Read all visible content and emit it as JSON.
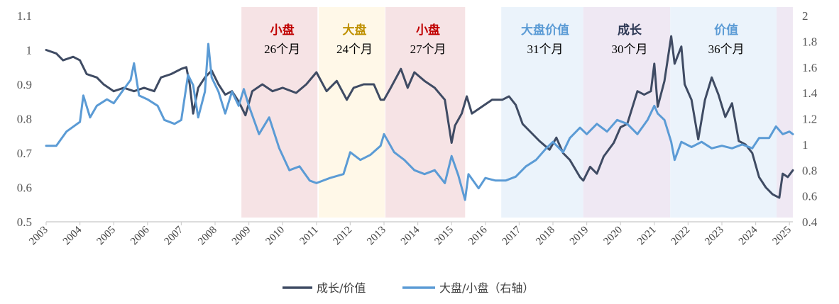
{
  "chart_data": {
    "type": "line",
    "title": "",
    "x_axis": {
      "range": [
        2003,
        2025.1
      ],
      "tick_labels": [
        "2003",
        "2004",
        "2005",
        "2006",
        "2007",
        "2008",
        "2009",
        "2010",
        "2011",
        "2012",
        "2013",
        "2014",
        "2015",
        "2016",
        "2017",
        "2018",
        "2019",
        "2020",
        "2021",
        "2022",
        "2023",
        "2024",
        "2025"
      ]
    },
    "y_left": {
      "range": [
        0.5,
        1.1
      ],
      "tick_labels": [
        "0.5",
        "0.6",
        "0.7",
        "0.8",
        "0.9",
        "1",
        "1.1"
      ]
    },
    "y_right": {
      "range": [
        0.4,
        2.0
      ],
      "tick_labels": [
        "0.4",
        "0.6",
        "0.8",
        "1",
        "1.2",
        "1.4",
        "1.6",
        "1.8",
        "2"
      ]
    },
    "grid": false,
    "legend_placement": "bottom",
    "regions": [
      {
        "start": 2008.78,
        "end": 2011.03,
        "label": "小盘",
        "duration": "26个月",
        "fill": "#f6e3e5",
        "label_color": "#c00000"
      },
      {
        "start": 2011.07,
        "end": 2013.02,
        "label": "大盘",
        "duration": "24个月",
        "fill": "#fff8e8",
        "label_color": "#bf9000"
      },
      {
        "start": 2013.04,
        "end": 2015.4,
        "label": "小盘",
        "duration": "27个月",
        "fill": "#f6e3e5",
        "label_color": "#c00000"
      },
      {
        "start": 2016.47,
        "end": 2018.9,
        "label": "大盘价值",
        "duration": "31个月",
        "fill": "#ebf3fb",
        "label_color": "#5b9bd5"
      },
      {
        "start": 2018.9,
        "end": 2021.47,
        "label": "成长",
        "duration": "30个月",
        "fill": "#efe8f3",
        "label_color": "#2f3a56"
      },
      {
        "start": 2021.47,
        "end": 2024.62,
        "label": "价值",
        "duration": "36个月",
        "fill": "#ebf3fb",
        "label_color": "#5b9bd5"
      },
      {
        "start": 2024.62,
        "end": 2025.1,
        "label": "",
        "duration": "",
        "fill": "#efe8f3",
        "label_color": "#2f3a56"
      }
    ],
    "series": [
      {
        "name": "成长/价值",
        "axis": "left",
        "color": "#3f4b63",
        "x": [
          2003.0,
          2003.3,
          2003.5,
          2003.8,
          2004.0,
          2004.2,
          2004.5,
          2004.7,
          2005.0,
          2005.3,
          2005.6,
          2005.9,
          2006.2,
          2006.4,
          2006.7,
          2007.0,
          2007.15,
          2007.25,
          2007.35,
          2007.5,
          2007.7,
          2007.9,
          2008.1,
          2008.3,
          2008.5,
          2008.7,
          2008.9,
          2009.1,
          2009.4,
          2009.7,
          2010.0,
          2010.4,
          2010.7,
          2011.0,
          2011.3,
          2011.6,
          2011.9,
          2012.1,
          2012.4,
          2012.7,
          2012.9,
          2013.0,
          2013.2,
          2013.5,
          2013.7,
          2013.9,
          2014.2,
          2014.5,
          2014.8,
          2015.0,
          2015.1,
          2015.3,
          2015.45,
          2015.6,
          2015.9,
          2016.2,
          2016.5,
          2016.7,
          2016.9,
          2017.1,
          2017.3,
          2017.6,
          2017.9,
          2018.1,
          2018.3,
          2018.5,
          2018.8,
          2018.9,
          2019.1,
          2019.3,
          2019.5,
          2019.8,
          2020.0,
          2020.2,
          2020.5,
          2020.7,
          2020.9,
          2021.0,
          2021.1,
          2021.3,
          2021.5,
          2021.6,
          2021.8,
          2021.9,
          2022.1,
          2022.3,
          2022.5,
          2022.7,
          2022.9,
          2023.1,
          2023.3,
          2023.5,
          2023.7,
          2023.9,
          2024.1,
          2024.3,
          2024.5,
          2024.7,
          2024.8,
          2024.95,
          2025.1
        ],
        "values": [
          1.0,
          0.99,
          0.97,
          0.98,
          0.97,
          0.93,
          0.92,
          0.9,
          0.88,
          0.89,
          0.88,
          0.89,
          0.88,
          0.92,
          0.93,
          0.945,
          0.95,
          0.9,
          0.815,
          0.89,
          0.92,
          0.94,
          0.9,
          0.87,
          0.88,
          0.85,
          0.81,
          0.88,
          0.9,
          0.88,
          0.89,
          0.875,
          0.9,
          0.935,
          0.88,
          0.91,
          0.855,
          0.89,
          0.9,
          0.9,
          0.855,
          0.855,
          0.89,
          0.945,
          0.89,
          0.935,
          0.91,
          0.89,
          0.855,
          0.73,
          0.78,
          0.815,
          0.865,
          0.815,
          0.835,
          0.855,
          0.855,
          0.865,
          0.84,
          0.785,
          0.765,
          0.735,
          0.71,
          0.745,
          0.7,
          0.68,
          0.63,
          0.62,
          0.66,
          0.64,
          0.69,
          0.73,
          0.775,
          0.785,
          0.88,
          0.87,
          0.88,
          0.96,
          0.835,
          0.91,
          1.04,
          0.96,
          1.01,
          0.9,
          0.855,
          0.74,
          0.855,
          0.92,
          0.87,
          0.805,
          0.845,
          0.735,
          0.725,
          0.7,
          0.63,
          0.6,
          0.58,
          0.57,
          0.64,
          0.63,
          0.65
        ]
      },
      {
        "name": "大盘/小盘（右轴）",
        "axis": "right",
        "color": "#5b9bd5",
        "x": [
          2003.0,
          2003.3,
          2003.6,
          2004.0,
          2004.1,
          2004.3,
          2004.5,
          2004.8,
          2005.0,
          2005.3,
          2005.5,
          2005.6,
          2005.75,
          2006.0,
          2006.3,
          2006.5,
          2006.8,
          2007.0,
          2007.2,
          2007.35,
          2007.5,
          2007.7,
          2007.8,
          2007.9,
          2008.1,
          2008.3,
          2008.5,
          2008.7,
          2008.85,
          2009.0,
          2009.3,
          2009.6,
          2009.9,
          2010.2,
          2010.5,
          2010.8,
          2011.0,
          2011.4,
          2011.8,
          2012.0,
          2012.3,
          2012.6,
          2012.9,
          2013.0,
          2013.3,
          2013.6,
          2013.9,
          2014.2,
          2014.5,
          2014.8,
          2015.0,
          2015.2,
          2015.4,
          2015.5,
          2015.8,
          2016.0,
          2016.3,
          2016.6,
          2016.9,
          2017.2,
          2017.5,
          2017.8,
          2018.0,
          2018.3,
          2018.5,
          2018.8,
          2019.0,
          2019.3,
          2019.6,
          2019.9,
          2020.2,
          2020.5,
          2020.8,
          2021.0,
          2021.1,
          2021.3,
          2021.5,
          2021.6,
          2021.8,
          2022.1,
          2022.4,
          2022.7,
          2023.0,
          2023.3,
          2023.6,
          2023.9,
          2024.1,
          2024.4,
          2024.6,
          2024.8,
          2025.0,
          2025.1
        ],
        "values": [
          0.99,
          0.99,
          1.1,
          1.175,
          1.38,
          1.21,
          1.3,
          1.35,
          1.32,
          1.43,
          1.5,
          1.63,
          1.38,
          1.35,
          1.3,
          1.19,
          1.16,
          1.19,
          1.54,
          1.46,
          1.21,
          1.41,
          1.78,
          1.52,
          1.41,
          1.24,
          1.41,
          1.3,
          1.43,
          1.3,
          1.08,
          1.21,
          0.97,
          0.8,
          0.83,
          0.72,
          0.7,
          0.74,
          0.77,
          0.94,
          0.88,
          0.92,
          0.99,
          1.08,
          0.94,
          0.88,
          0.8,
          0.77,
          0.8,
          0.7,
          0.91,
          0.76,
          0.57,
          0.77,
          0.66,
          0.74,
          0.72,
          0.72,
          0.75,
          0.83,
          0.88,
          0.97,
          1.02,
          0.94,
          1.05,
          1.13,
          1.08,
          1.16,
          1.1,
          1.19,
          1.16,
          1.08,
          1.19,
          1.3,
          1.24,
          1.19,
          1.02,
          0.88,
          1.02,
          0.98,
          1.02,
          0.97,
          0.99,
          0.97,
          1.0,
          0.97,
          1.05,
          1.05,
          1.14,
          1.08,
          1.1,
          1.08
        ]
      }
    ]
  },
  "legend": {
    "items": [
      "成长/价值",
      "大盘/小盘（右轴）"
    ]
  }
}
